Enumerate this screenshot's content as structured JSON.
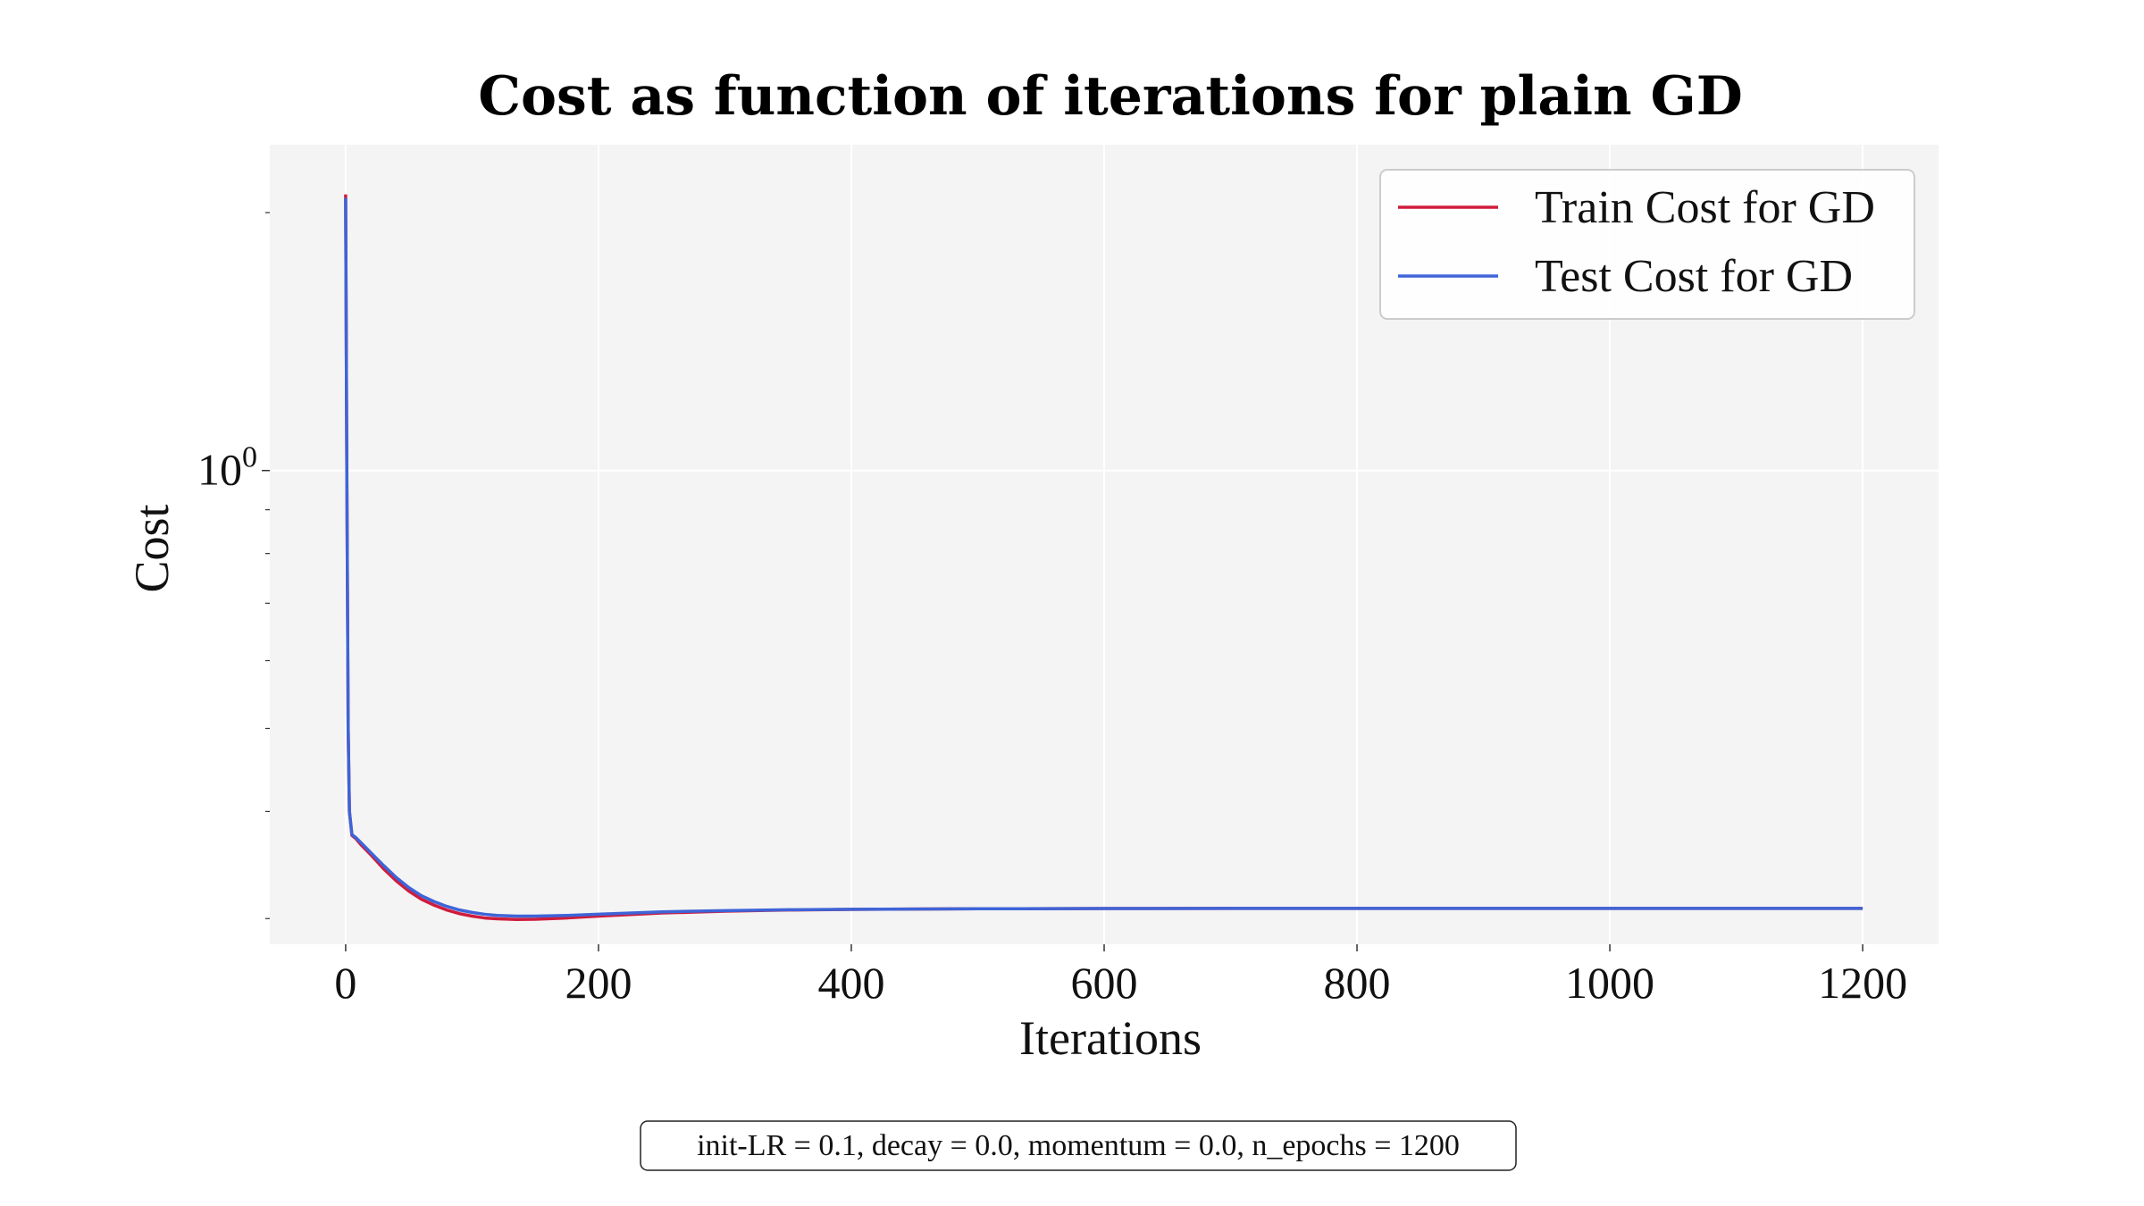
{
  "chart_data": {
    "type": "line",
    "title": "Cost as function of iterations for plain GD",
    "xlabel": "Iterations",
    "ylabel": "Cost",
    "xlim": [
      -60,
      1260
    ],
    "ylim": [
      0.28,
      2.4
    ],
    "yscale": "log",
    "xticks": [
      0,
      200,
      400,
      600,
      800,
      1000,
      1200
    ],
    "yticks": [
      {
        "value": 1,
        "base": "10",
        "exp": "0"
      }
    ],
    "grid": true,
    "legend_position": "top-right",
    "series": [
      {
        "name": "Train Cost for GD",
        "color": "#d01c3c",
        "x": [
          0,
          1,
          2,
          3,
          5,
          8,
          12,
          20,
          30,
          40,
          50,
          60,
          70,
          80,
          90,
          100,
          110,
          120,
          135,
          150,
          175,
          200,
          250,
          300,
          350,
          400,
          500,
          600,
          700,
          800,
          1000,
          1200
        ],
        "y": [
          2.1,
          0.95,
          0.5,
          0.4,
          0.375,
          0.372,
          0.366,
          0.356,
          0.343,
          0.332,
          0.323,
          0.316,
          0.311,
          0.307,
          0.304,
          0.302,
          0.3005,
          0.2998,
          0.2993,
          0.2995,
          0.3005,
          0.302,
          0.3045,
          0.306,
          0.307,
          0.3075,
          0.308,
          0.3082,
          0.3083,
          0.3083,
          0.3083,
          0.3083
        ]
      },
      {
        "name": "Test Cost for GD",
        "color": "#3e64d8",
        "x": [
          0,
          1,
          2,
          3,
          5,
          8,
          12,
          20,
          30,
          40,
          50,
          60,
          70,
          80,
          90,
          100,
          110,
          120,
          135,
          150,
          175,
          200,
          250,
          300,
          350,
          400,
          500,
          600,
          700,
          800,
          1000,
          1200
        ],
        "y": [
          2.08,
          0.95,
          0.5,
          0.4,
          0.376,
          0.373,
          0.368,
          0.358,
          0.346,
          0.335,
          0.326,
          0.319,
          0.314,
          0.31,
          0.307,
          0.305,
          0.3035,
          0.3025,
          0.302,
          0.302,
          0.3025,
          0.3035,
          0.3055,
          0.3065,
          0.3072,
          0.3076,
          0.308,
          0.3082,
          0.3083,
          0.3083,
          0.3083,
          0.3083
        ]
      }
    ],
    "annotation": "init-LR = 0.1, decay = 0.0, momentum = 0.0, n_epochs = 1200"
  }
}
